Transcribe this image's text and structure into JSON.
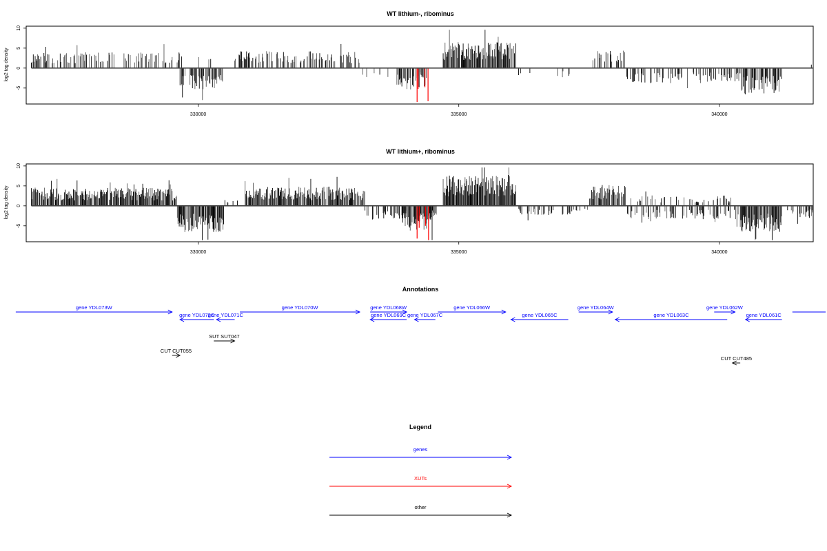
{
  "chart_data": [
    {
      "type": "bar",
      "title": "WT lithium-, ribominus",
      "ylabel": "log2 tag density",
      "xlabel": "",
      "xlim": [
        326700,
        341800
      ],
      "ylim": [
        -9,
        10.5
      ],
      "yticks": [
        "10",
        "5",
        "0",
        "-5"
      ],
      "xticks": [
        "330000",
        "335000",
        "340000"
      ],
      "grid": false,
      "legend": "none",
      "regions": [
        {
          "start": 326800,
          "end": 329700,
          "sign": 1,
          "amp": 3.3,
          "density": 0.35
        },
        {
          "start": 329650,
          "end": 330500,
          "sign": -1,
          "amp": 4.5,
          "density": 0.55
        },
        {
          "start": 330000,
          "end": 330300,
          "sign": 1,
          "amp": 2.5,
          "density": 0.1
        },
        {
          "start": 330700,
          "end": 333100,
          "sign": 1,
          "amp": 3.5,
          "density": 0.45
        },
        {
          "start": 333100,
          "end": 334500,
          "sign": -1,
          "amp": 2.0,
          "density": 0.08
        },
        {
          "start": 333800,
          "end": 334400,
          "sign": -1,
          "amp": 4.5,
          "density": 0.6
        },
        {
          "start": 334700,
          "end": 336100,
          "sign": 1,
          "amp": 5.5,
          "density": 0.85
        },
        {
          "start": 336100,
          "end": 337500,
          "sign": -1,
          "amp": 2.0,
          "density": 0.08
        },
        {
          "start": 337500,
          "end": 338200,
          "sign": 1,
          "amp": 3.8,
          "density": 0.4
        },
        {
          "start": 338200,
          "end": 340400,
          "sign": -1,
          "amp": 3.2,
          "density": 0.35
        },
        {
          "start": 340400,
          "end": 341200,
          "sign": -1,
          "amp": 5.5,
          "density": 0.75
        },
        {
          "start": 341200,
          "end": 341800,
          "sign": 1,
          "amp": 1.5,
          "density": 0.05
        }
      ],
      "highlights": [
        {
          "x": 334200,
          "value": -8.5,
          "color": "#ff0000"
        },
        {
          "x": 334220,
          "value": -5.2,
          "color": "#ff0000"
        },
        {
          "x": 334350,
          "value": -4.8,
          "color": "#ff0000"
        },
        {
          "x": 334410,
          "value": -8.3,
          "color": "#ff0000"
        }
      ]
    },
    {
      "type": "bar",
      "title": "WT lithium+, ribominus",
      "ylabel": "log2 tag density",
      "xlabel": "",
      "xlim": [
        326700,
        341800
      ],
      "ylim": [
        -9,
        10.5
      ],
      "yticks": [
        "10",
        "5",
        "0",
        "-5"
      ],
      "xticks": [
        "330000",
        "335000",
        "340000"
      ],
      "grid": false,
      "legend": "none",
      "regions": [
        {
          "start": 326800,
          "end": 329600,
          "sign": 1,
          "amp": 3.8,
          "density": 0.85
        },
        {
          "start": 329600,
          "end": 330500,
          "sign": -1,
          "amp": 5.5,
          "density": 0.9
        },
        {
          "start": 330500,
          "end": 330900,
          "sign": 1,
          "amp": 1.2,
          "density": 0.1
        },
        {
          "start": 330900,
          "end": 333200,
          "sign": 1,
          "amp": 4.0,
          "density": 0.8
        },
        {
          "start": 333200,
          "end": 334600,
          "sign": -1,
          "amp": 3.0,
          "density": 0.45
        },
        {
          "start": 333900,
          "end": 334500,
          "sign": -1,
          "amp": 5.0,
          "density": 0.8
        },
        {
          "start": 334700,
          "end": 336100,
          "sign": 1,
          "amp": 6.5,
          "density": 0.95
        },
        {
          "start": 336100,
          "end": 337500,
          "sign": -1,
          "amp": 2.0,
          "density": 0.3
        },
        {
          "start": 337500,
          "end": 338200,
          "sign": 1,
          "amp": 4.5,
          "density": 0.7
        },
        {
          "start": 338200,
          "end": 340400,
          "sign": -1,
          "amp": 2.8,
          "density": 0.45
        },
        {
          "start": 338300,
          "end": 340300,
          "sign": 1,
          "amp": 2.2,
          "density": 0.25
        },
        {
          "start": 340400,
          "end": 341200,
          "sign": -1,
          "amp": 5.5,
          "density": 0.9
        },
        {
          "start": 341200,
          "end": 341800,
          "sign": -1,
          "amp": 2.5,
          "density": 0.4
        }
      ],
      "highlights": [
        {
          "x": 334200,
          "value": -8.2,
          "color": "#ff0000"
        },
        {
          "x": 334240,
          "value": -5.5,
          "color": "#ff0000"
        },
        {
          "x": 334360,
          "value": -5.0,
          "color": "#ff0000"
        },
        {
          "x": 334420,
          "value": -8.6,
          "color": "#ff0000"
        }
      ]
    }
  ],
  "annotations": {
    "title": "Annotations",
    "features": [
      {
        "label": "gene YDL073W",
        "start": 326500,
        "end": 329500,
        "strand": "+",
        "row": 0,
        "color": "#0000ff"
      },
      {
        "label": "gene YDL072C",
        "start": 329650,
        "end": 330300,
        "strand": "-",
        "row": 1,
        "color": "#0000ff"
      },
      {
        "label": "gene YDL071C",
        "start": 330350,
        "end": 330700,
        "strand": "-",
        "row": 1,
        "color": "#0000ff"
      },
      {
        "label": "gene YDL070W",
        "start": 330800,
        "end": 333100,
        "strand": "+",
        "row": 0,
        "color": "#0000ff"
      },
      {
        "label": "gene YDL068W",
        "start": 333300,
        "end": 334000,
        "strand": "+",
        "row": 0,
        "color": "#0000ff"
      },
      {
        "label": "gene YDL069C",
        "start": 333300,
        "end": 334000,
        "strand": "-",
        "row": 1,
        "color": "#0000ff"
      },
      {
        "label": "gene YDL067C",
        "start": 334150,
        "end": 334550,
        "strand": "-",
        "row": 1,
        "color": "#0000ff"
      },
      {
        "label": "gene YDL066W",
        "start": 334600,
        "end": 335900,
        "strand": "+",
        "row": 0,
        "color": "#0000ff"
      },
      {
        "label": "gene YDL065C",
        "start": 336000,
        "end": 337100,
        "strand": "-",
        "row": 1,
        "color": "#0000ff"
      },
      {
        "label": "gene YDL064W",
        "start": 337300,
        "end": 337950,
        "strand": "+",
        "row": 0,
        "color": "#0000ff"
      },
      {
        "label": "gene YDL063C",
        "start": 338000,
        "end": 340150,
        "strand": "-",
        "row": 1,
        "color": "#0000ff"
      },
      {
        "label": "gene YDL062W",
        "start": 339900,
        "end": 340300,
        "strand": "+",
        "row": 0,
        "color": "#0000ff"
      },
      {
        "label": "gene YDL061C",
        "start": 340500,
        "end": 341200,
        "strand": "-",
        "row": 1,
        "color": "#0000ff"
      },
      {
        "label": "",
        "start": 341400,
        "end": 342200,
        "strand": "+",
        "row": 0,
        "color": "#0000ff"
      },
      {
        "label": "SUT SUT047",
        "start": 330300,
        "end": 330700,
        "strand": "+",
        "row": 3,
        "color": "#000000"
      },
      {
        "label": "CUT CUT055",
        "start": 329500,
        "end": 329650,
        "strand": "+",
        "row": 5,
        "color": "#000000"
      },
      {
        "label": "CUT CUT485",
        "start": 340250,
        "end": 340400,
        "strand": "-",
        "row": 6,
        "color": "#000000"
      }
    ]
  },
  "legend": {
    "title": "Legend",
    "items": [
      {
        "label": "genes",
        "color": "#0000ff"
      },
      {
        "label": "XUTs",
        "color": "#ff0000"
      },
      {
        "label": "other",
        "color": "#000000"
      }
    ]
  }
}
